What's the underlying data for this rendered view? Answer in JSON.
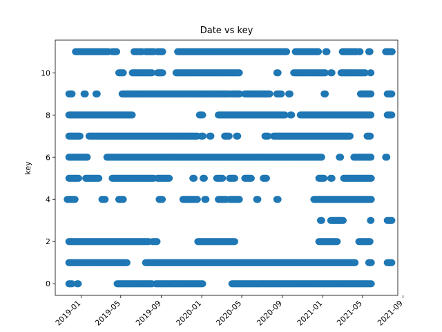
{
  "chart_data": {
    "type": "scatter",
    "title": "Date vs key",
    "xlabel": "",
    "ylabel": "key",
    "x_type": "date",
    "xlim": [
      "2018-10-15",
      "2021-08-16"
    ],
    "ylim": [
      -0.55,
      11.55
    ],
    "x_ticks": [
      "2019-01",
      "2019-05",
      "2019-09",
      "2020-01",
      "2020-05",
      "2020-09",
      "2021-01",
      "2021-05",
      "2021-09"
    ],
    "y_ticks": [
      0,
      2,
      4,
      6,
      8,
      10
    ],
    "marker_color": "#1f77b4",
    "grid": false,
    "legend": false,
    "series": [
      {
        "points": [
          {
            "key": 0,
            "ranges": [
              [
                "2018-11-25",
                "2018-12-05"
              ],
              [
                "2018-12-20",
                "2018-12-25"
              ],
              [
                "2019-04-20",
                "2019-08-05"
              ],
              [
                "2019-08-15",
                "2020-01-05"
              ],
              [
                "2020-04-01",
                "2021-05-28"
              ]
            ]
          },
          {
            "key": 1,
            "ranges": [
              [
                "2018-11-25",
                "2019-05-20"
              ],
              [
                "2019-07-15",
                "2021-04-10"
              ],
              [
                "2021-05-20",
                "2021-05-28"
              ],
              [
                "2021-07-15",
                "2021-07-30"
              ]
            ]
          },
          {
            "key": 2,
            "ranges": [
              [
                "2018-11-25",
                "2019-07-25"
              ],
              [
                "2019-08-05",
                "2019-08-20"
              ],
              [
                "2019-12-20",
                "2020-04-10"
              ],
              [
                "2020-12-20",
                "2021-02-15"
              ],
              [
                "2021-04-20",
                "2021-05-25"
              ]
            ]
          },
          {
            "key": 3,
            "ranges": [
              [
                "2020-12-25",
                "2020-12-30"
              ],
              [
                "2021-01-25",
                "2021-03-05"
              ],
              [
                "2021-05-25",
                "2021-05-28"
              ],
              [
                "2021-07-15",
                "2021-07-30"
              ]
            ]
          },
          {
            "key": 4,
            "ranges": [
              [
                "2018-11-20",
                "2018-12-15"
              ],
              [
                "2019-03-05",
                "2019-03-15"
              ],
              [
                "2019-04-25",
                "2019-05-10"
              ],
              [
                "2019-08-25",
                "2019-09-05"
              ],
              [
                "2019-11-05",
                "2019-12-20"
              ],
              [
                "2020-01-10",
                "2020-01-15"
              ],
              [
                "2020-02-20",
                "2020-03-15"
              ],
              [
                "2020-03-25",
                "2020-04-25"
              ],
              [
                "2020-06-15",
                "2020-06-20"
              ],
              [
                "2020-08-15",
                "2020-08-20"
              ],
              [
                "2020-12-05",
                "2021-05-28"
              ]
            ]
          },
          {
            "key": 5,
            "ranges": [
              [
                "2018-11-25",
                "2018-12-25"
              ],
              [
                "2019-01-15",
                "2019-02-25"
              ],
              [
                "2019-04-05",
                "2019-08-10"
              ],
              [
                "2019-08-20",
                "2019-09-25"
              ],
              [
                "2019-12-05",
                "2019-12-10"
              ],
              [
                "2020-01-05",
                "2020-01-10"
              ],
              [
                "2020-02-15",
                "2020-03-05"
              ],
              [
                "2020-03-25",
                "2020-04-10"
              ],
              [
                "2020-05-10",
                "2020-05-30"
              ],
              [
                "2020-07-05",
                "2020-07-15"
              ],
              [
                "2020-12-20",
                "2021-01-05"
              ],
              [
                "2021-01-25",
                "2021-01-30"
              ],
              [
                "2021-03-05",
                "2021-05-28"
              ]
            ]
          },
          {
            "key": 6,
            "ranges": [
              [
                "2018-11-25",
                "2019-01-20"
              ],
              [
                "2019-03-20",
                "2020-12-30"
              ],
              [
                "2021-02-20",
                "2021-02-25"
              ],
              [
                "2021-04-05",
                "2021-05-28"
              ],
              [
                "2021-07-10",
                "2021-07-15"
              ]
            ]
          },
          {
            "key": 7,
            "ranges": [
              [
                "2018-11-25",
                "2018-12-30"
              ],
              [
                "2019-01-25",
                "2019-12-20"
              ],
              [
                "2019-12-30",
                "2020-01-05"
              ],
              [
                "2020-01-25",
                "2020-01-30"
              ],
              [
                "2020-03-10",
                "2020-03-25"
              ],
              [
                "2020-04-15",
                "2020-04-20"
              ],
              [
                "2020-07-10",
                "2020-07-20"
              ],
              [
                "2020-08-05",
                "2021-03-25"
              ],
              [
                "2021-05-15",
                "2021-05-25"
              ]
            ]
          },
          {
            "key": 8,
            "ranges": [
              [
                "2018-11-25",
                "2019-06-05"
              ],
              [
                "2019-12-25",
                "2020-01-05"
              ],
              [
                "2020-02-20",
                "2020-09-10"
              ],
              [
                "2020-09-25",
                "2020-09-30"
              ],
              [
                "2020-10-25",
                "2021-05-28"
              ],
              [
                "2021-07-15",
                "2021-07-30"
              ]
            ]
          },
          {
            "key": 9,
            "ranges": [
              [
                "2018-11-25",
                "2018-12-05"
              ],
              [
                "2019-01-10",
                "2019-01-15"
              ],
              [
                "2019-02-15",
                "2019-02-20"
              ],
              [
                "2019-05-05",
                "2020-03-25"
              ],
              [
                "2020-03-30",
                "2020-04-25"
              ],
              [
                "2020-05-10",
                "2020-07-25"
              ],
              [
                "2020-08-15",
                "2020-08-30"
              ],
              [
                "2020-09-20",
                "2020-09-25"
              ],
              [
                "2021-01-05",
                "2021-01-10"
              ],
              [
                "2021-04-25",
                "2021-05-28"
              ],
              [
                "2021-07-15",
                "2021-07-30"
              ]
            ]
          },
          {
            "key": 10,
            "ranges": [
              [
                "2019-04-25",
                "2019-05-10"
              ],
              [
                "2019-06-05",
                "2019-08-05"
              ],
              [
                "2019-08-20",
                "2019-09-05"
              ],
              [
                "2019-10-15",
                "2020-04-25"
              ],
              [
                "2020-08-15",
                "2020-08-20"
              ],
              [
                "2020-10-05",
                "2021-01-10"
              ],
              [
                "2021-01-25",
                "2021-01-30"
              ],
              [
                "2021-02-25",
                "2021-05-10"
              ],
              [
                "2021-05-25",
                "2021-05-28"
              ]
            ]
          },
          {
            "key": 11,
            "ranges": [
              [
                "2018-12-15",
                "2019-03-25"
              ],
              [
                "2019-04-05",
                "2019-04-20"
              ],
              [
                "2019-06-10",
                "2019-06-20"
              ],
              [
                "2019-06-25",
                "2019-07-05"
              ],
              [
                "2019-07-15",
                "2019-08-10"
              ],
              [
                "2019-08-20",
                "2019-09-05"
              ],
              [
                "2019-10-20",
                "2020-09-15"
              ],
              [
                "2020-10-10",
                "2020-12-20"
              ],
              [
                "2021-01-10",
                "2021-01-15"
              ],
              [
                "2021-03-01",
                "2021-04-15"
              ],
              [
                "2021-04-20",
                "2021-04-25"
              ],
              [
                "2021-05-20",
                "2021-05-25"
              ],
              [
                "2021-07-10",
                "2021-07-30"
              ]
            ]
          }
        ]
      }
    ]
  }
}
